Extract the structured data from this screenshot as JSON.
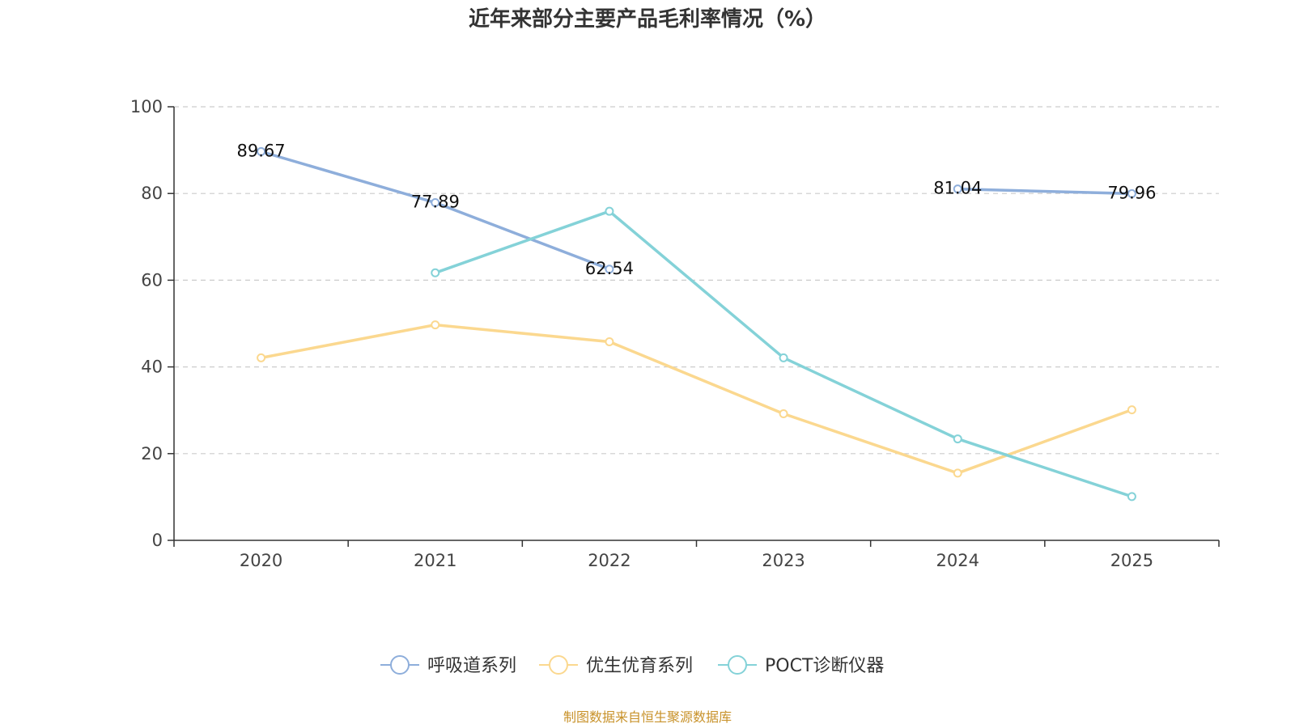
{
  "chart_data": {
    "type": "line",
    "title": "近年来部分主要产品毛利率情况（%）",
    "xlabel": "",
    "ylabel": "",
    "categories": [
      "2020",
      "2021",
      "2022",
      "2023",
      "2024",
      "2025"
    ],
    "ylim": [
      0,
      100
    ],
    "yticks": [
      "0",
      "20",
      "40",
      "60",
      "80",
      "100"
    ],
    "grid": true,
    "legend_position": "bottom",
    "series": [
      {
        "name": "呼吸道系列",
        "color": "#8eaedb",
        "values": [
          89.67,
          77.89,
          62.54,
          null,
          81.04,
          79.96
        ],
        "labels": [
          "89.67",
          "77.89",
          "62.54",
          "",
          "81.04",
          "79.96"
        ]
      },
      {
        "name": "优生优育系列",
        "color": "#fbd88f",
        "values": [
          42.1,
          49.7,
          45.8,
          29.2,
          15.5,
          30.1
        ],
        "labels": [
          "",
          "",
          "",
          "",
          "",
          ""
        ]
      },
      {
        "name": "POCT诊断仪器",
        "color": "#84d2d8",
        "values": [
          null,
          61.7,
          75.9,
          42.1,
          23.4,
          10.1
        ],
        "labels": [
          "",
          "",
          "",
          "",
          "",
          ""
        ]
      }
    ],
    "source": "制图数据来自恒生聚源数据库",
    "source_color": "#c8922a"
  }
}
